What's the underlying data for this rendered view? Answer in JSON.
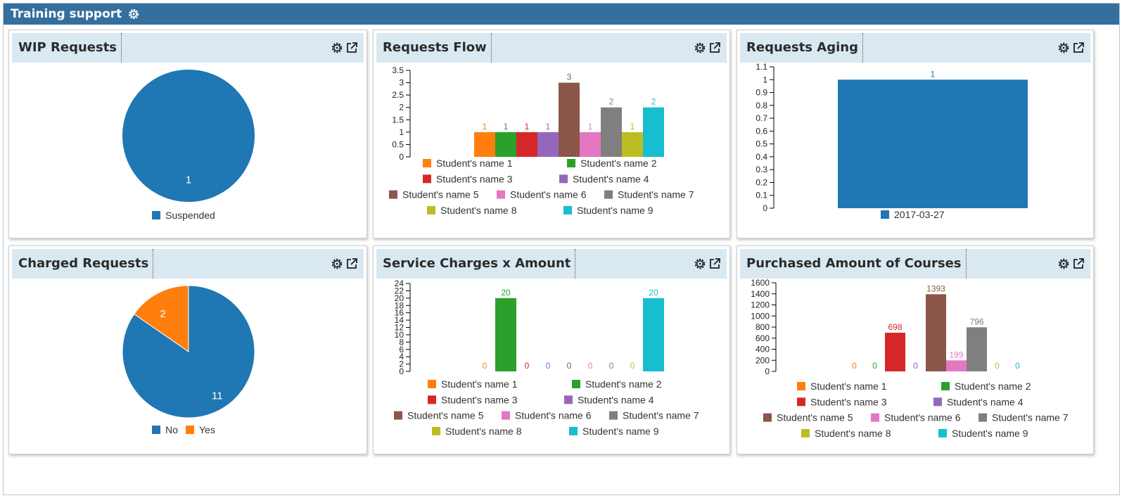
{
  "app": {
    "title": "Training support"
  },
  "panels": [
    {
      "title": "WIP Requests",
      "chart_data": {
        "type": "pie",
        "labels": [
          "Suspended"
        ],
        "values": [
          1
        ],
        "colors": [
          "#1f77b4"
        ],
        "legend": "bottom"
      }
    },
    {
      "title": "Requests Flow",
      "chart_data": {
        "type": "bar",
        "categories": [
          "Student's name 1",
          "Student's name 2",
          "Student's name 3",
          "Student's name 4",
          "Student's name 5",
          "Student's name 6",
          "Student's name 7",
          "Student's name 8",
          "Student's name 9"
        ],
        "values": [
          1,
          1,
          1,
          1,
          3,
          1,
          2,
          1,
          2
        ],
        "ylim": [
          0,
          3.5
        ],
        "yticks": [
          "0",
          "0.5",
          "1",
          "1.5",
          "2",
          "2.5",
          "3",
          "3.5"
        ],
        "legend": "bottom"
      }
    },
    {
      "title": "Requests Aging",
      "chart_data": {
        "type": "bar",
        "categories": [
          "2017-03-27"
        ],
        "values": [
          1
        ],
        "ylim": [
          0,
          1.1
        ],
        "yticks": [
          "0",
          "0.1",
          "0.2",
          "0.3",
          "0.4",
          "0.5",
          "0.6",
          "0.7",
          "0.8",
          "0.9",
          "1",
          "1.1"
        ],
        "legend": "bottom"
      }
    },
    {
      "title": "Charged Requests",
      "chart_data": {
        "type": "pie",
        "labels": [
          "No",
          "Yes"
        ],
        "values": [
          11,
          2
        ],
        "colors": [
          "#1f77b4",
          "#ff7f0e"
        ],
        "legend": "bottom"
      }
    },
    {
      "title": "Service Charges x Amount",
      "chart_data": {
        "type": "bar",
        "categories": [
          "Student's name 1",
          "Student's name 2",
          "Student's name 3",
          "Student's name 4",
          "Student's name 5",
          "Student's name 6",
          "Student's name 7",
          "Student's name 8",
          "Student's name 9"
        ],
        "values": [
          0,
          20,
          0,
          0,
          0,
          0,
          0,
          0,
          20
        ],
        "ylim": [
          0,
          24
        ],
        "yticks": [
          "0",
          "2",
          "4",
          "6",
          "8",
          "10",
          "12",
          "14",
          "16",
          "18",
          "20",
          "22",
          "24"
        ],
        "legend": "bottom"
      }
    },
    {
      "title": "Purchased Amount of Courses",
      "chart_data": {
        "type": "bar",
        "categories": [
          "Student's name 1",
          "Student's name 2",
          "Student's name 3",
          "Student's name 4",
          "Student's name 5",
          "Student's name 6",
          "Student's name 7",
          "Student's name 8",
          "Student's name 9"
        ],
        "values": [
          0,
          0,
          698,
          0,
          1393,
          199,
          796,
          0,
          0
        ],
        "ylim": [
          0,
          1600
        ],
        "yticks": [
          "0",
          "200",
          "400",
          "600",
          "800",
          "1000",
          "1200",
          "1400",
          "1600"
        ],
        "legend": "bottom"
      }
    }
  ],
  "palette": [
    "#ff7f0e",
    "#2ca02c",
    "#d62728",
    "#9467bd",
    "#8c564b",
    "#e377c2",
    "#7f7f7f",
    "#bcbd22",
    "#17becf"
  ],
  "accent": "#356f9e",
  "header_bg": "#d9e8f1",
  "icons": {
    "settings": "gear-icon",
    "popout": "external-link-icon"
  }
}
